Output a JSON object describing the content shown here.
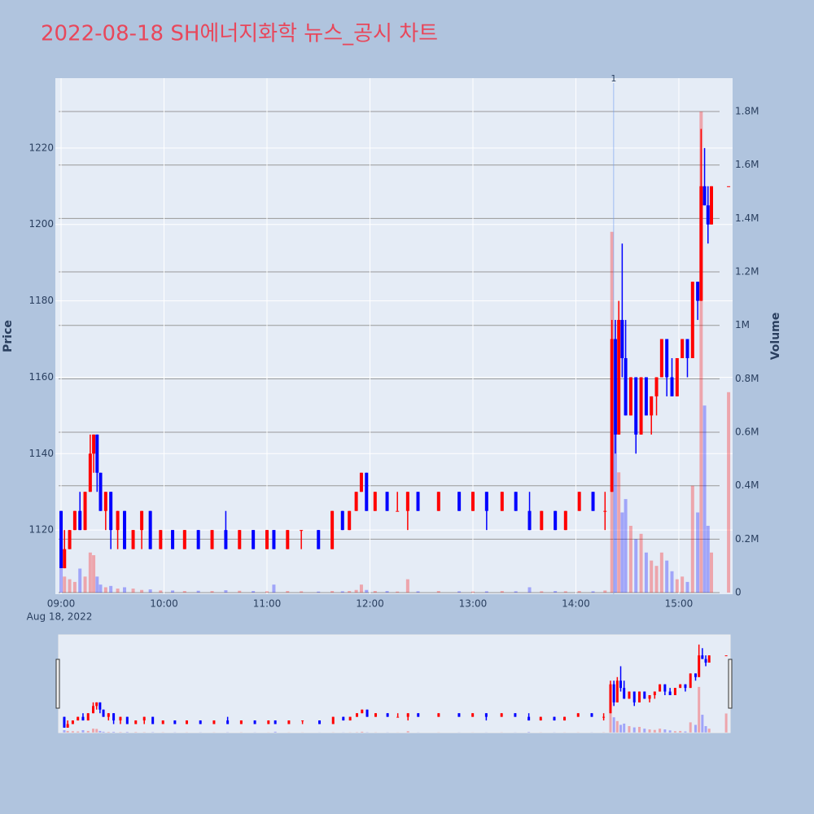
{
  "chart_data": {
    "type": "candlestick",
    "title": "2022-08-18 SH에너지화학 뉴스_공시 차트",
    "y_label": "Price",
    "y2_label": "Volume",
    "date_label": "Aug 18, 2022",
    "increasing_color": "#ff0000",
    "decreasing_color": "#0000ff",
    "grid": true,
    "range_slider": true,
    "xlim": [
      "2022-08-18 08:56:40",
      "2022-08-18 15:31:20"
    ],
    "xticks": [
      {
        "value": "2022-08-18 09:00",
        "label": "09:00"
      },
      {
        "value": "2022-08-18 10:00",
        "label": "10:00"
      },
      {
        "value": "2022-08-18 11:00",
        "label": "11:00"
      },
      {
        "value": "2022-08-18 12:00",
        "label": "12:00"
      },
      {
        "value": "2022-08-18 13:00",
        "label": "13:00"
      },
      {
        "value": "2022-08-18 14:00",
        "label": "14:00"
      },
      {
        "value": "2022-08-18 15:00",
        "label": "15:00"
      }
    ],
    "ylim": [
      1103.2,
      1238.3
    ],
    "yticks": [
      1120,
      1140,
      1160,
      1180,
      1200,
      1220
    ],
    "y2lim": [
      -6000,
      1925000
    ],
    "y2ticks": [
      0,
      {
        "value": 200000,
        "label": "0.2M"
      },
      {
        "value": 400000,
        "label": "0.4M"
      },
      {
        "value": 600000,
        "label": "0.6M"
      },
      {
        "value": 800000,
        "label": "0.8M"
      },
      {
        "value": 1000000,
        "label": "1M"
      },
      {
        "value": 1200000,
        "label": "1.2M"
      },
      {
        "value": 1400000,
        "label": "1.4M"
      },
      {
        "value": 1600000,
        "label": "1.6M"
      },
      {
        "value": 1800000,
        "label": "1.8M"
      }
    ],
    "annotations": [
      {
        "x": "2022-08-18 14:22",
        "text": "1"
      }
    ],
    "x": [
      "2022-08-18 09:00",
      "2022-08-18 09:02",
      "2022-08-18 09:05",
      "2022-08-18 09:08",
      "2022-08-18 09:11",
      "2022-08-18 09:14",
      "2022-08-18 09:17",
      "2022-08-18 09:19",
      "2022-08-18 09:21",
      "2022-08-18 09:23",
      "2022-08-18 09:26",
      "2022-08-18 09:29",
      "2022-08-18 09:33",
      "2022-08-18 09:37",
      "2022-08-18 09:42",
      "2022-08-18 09:47",
      "2022-08-18 09:52",
      "2022-08-18 09:58",
      "2022-08-18 10:05",
      "2022-08-18 10:12",
      "2022-08-18 10:20",
      "2022-08-18 10:28",
      "2022-08-18 10:36",
      "2022-08-18 10:44",
      "2022-08-18 10:52",
      "2022-08-18 11:00",
      "2022-08-18 11:04",
      "2022-08-18 11:12",
      "2022-08-18 11:20",
      "2022-08-18 11:30",
      "2022-08-18 11:38",
      "2022-08-18 11:44",
      "2022-08-18 11:48",
      "2022-08-18 11:52",
      "2022-08-18 11:55",
      "2022-08-18 11:58",
      "2022-08-18 12:03",
      "2022-08-18 12:10",
      "2022-08-18 12:16",
      "2022-08-18 12:22",
      "2022-08-18 12:28",
      "2022-08-18 12:40",
      "2022-08-18 12:52",
      "2022-08-18 13:00",
      "2022-08-18 13:08",
      "2022-08-18 13:17",
      "2022-08-18 13:25",
      "2022-08-18 13:33",
      "2022-08-18 13:40",
      "2022-08-18 13:48",
      "2022-08-18 13:54",
      "2022-08-18 14:02",
      "2022-08-18 14:10",
      "2022-08-18 14:17",
      "2022-08-18 14:21",
      "2022-08-18 14:23",
      "2022-08-18 14:25",
      "2022-08-18 14:27",
      "2022-08-18 14:29",
      "2022-08-18 14:32",
      "2022-08-18 14:35",
      "2022-08-18 14:38",
      "2022-08-18 14:41",
      "2022-08-18 14:44",
      "2022-08-18 14:47",
      "2022-08-18 14:50",
      "2022-08-18 14:53",
      "2022-08-18 14:56",
      "2022-08-18 14:59",
      "2022-08-18 15:02",
      "2022-08-18 15:05",
      "2022-08-18 15:08",
      "2022-08-18 15:11",
      "2022-08-18 15:13",
      "2022-08-18 15:15",
      "2022-08-18 15:17",
      "2022-08-18 15:19",
      "2022-08-18 15:29"
    ],
    "open": [
      1125,
      1110,
      1115,
      1120,
      1125,
      1120,
      1130,
      1140,
      1145,
      1135,
      1125,
      1130,
      1120,
      1125,
      1115,
      1120,
      1125,
      1115,
      1120,
      1115,
      1120,
      1115,
      1120,
      1115,
      1120,
      1115,
      1120,
      1115,
      1120,
      1120,
      1115,
      1125,
      1120,
      1125,
      1130,
      1135,
      1125,
      1130,
      1125,
      1125,
      1130,
      1125,
      1130,
      1125,
      1130,
      1125,
      1130,
      1125,
      1120,
      1125,
      1120,
      1125,
      1130,
      1125,
      1130,
      1170,
      1145,
      1175,
      1165,
      1150,
      1160,
      1145,
      1160,
      1150,
      1155,
      1160,
      1170,
      1160,
      1155,
      1165,
      1170,
      1165,
      1185,
      1180,
      1210,
      1205,
      1200,
      1210
    ],
    "high": [
      1125,
      1120,
      1120,
      1125,
      1130,
      1130,
      1145,
      1145,
      1145,
      1135,
      1130,
      1130,
      1125,
      1125,
      1120,
      1125,
      1125,
      1120,
      1120,
      1120,
      1120,
      1120,
      1125,
      1120,
      1120,
      1120,
      1120,
      1120,
      1120,
      1120,
      1125,
      1125,
      1125,
      1130,
      1135,
      1135,
      1130,
      1130,
      1130,
      1130,
      1130,
      1130,
      1130,
      1130,
      1130,
      1130,
      1130,
      1130,
      1125,
      1125,
      1125,
      1130,
      1130,
      1130,
      1175,
      1175,
      1180,
      1195,
      1175,
      1160,
      1160,
      1160,
      1160,
      1155,
      1160,
      1170,
      1170,
      1165,
      1165,
      1170,
      1170,
      1185,
      1185,
      1225,
      1220,
      1210,
      1210,
      1210
    ],
    "low": [
      1110,
      1110,
      1115,
      1120,
      1120,
      1120,
      1130,
      1135,
      1130,
      1125,
      1120,
      1115,
      1115,
      1115,
      1115,
      1115,
      1115,
      1115,
      1115,
      1115,
      1115,
      1115,
      1115,
      1115,
      1115,
      1115,
      1115,
      1115,
      1115,
      1115,
      1115,
      1120,
      1120,
      1125,
      1130,
      1125,
      1125,
      1125,
      1125,
      1120,
      1125,
      1125,
      1125,
      1125,
      1120,
      1125,
      1125,
      1120,
      1120,
      1120,
      1120,
      1125,
      1125,
      1120,
      1130,
      1140,
      1145,
      1160,
      1150,
      1150,
      1140,
      1145,
      1150,
      1145,
      1150,
      1160,
      1155,
      1155,
      1155,
      1165,
      1160,
      1165,
      1175,
      1180,
      1205,
      1195,
      1200,
      1210
    ],
    "close": [
      1110,
      1115,
      1120,
      1125,
      1120,
      1130,
      1140,
      1145,
      1135,
      1125,
      1130,
      1120,
      1125,
      1115,
      1120,
      1125,
      1115,
      1120,
      1115,
      1120,
      1115,
      1120,
      1115,
      1120,
      1115,
      1120,
      1115,
      1120,
      1120,
      1115,
      1125,
      1120,
      1125,
      1130,
      1135,
      1125,
      1130,
      1125,
      1125,
      1130,
      1125,
      1130,
      1125,
      1130,
      1125,
      1130,
      1125,
      1120,
      1125,
      1120,
      1125,
      1130,
      1125,
      1125,
      1170,
      1145,
      1175,
      1165,
      1150,
      1160,
      1145,
      1160,
      1150,
      1155,
      1160,
      1170,
      1160,
      1155,
      1165,
      1170,
      1165,
      1185,
      1180,
      1210,
      1205,
      1200,
      1210,
      1210
    ],
    "volume": [
      90000,
      60000,
      50000,
      40000,
      90000,
      60000,
      150000,
      140000,
      60000,
      30000,
      20000,
      25000,
      15000,
      20000,
      15000,
      10000,
      12000,
      8000,
      8000,
      6000,
      7000,
      6000,
      9000,
      7000,
      6000,
      5000,
      30000,
      6000,
      5000,
      4000,
      6000,
      5000,
      6000,
      10000,
      30000,
      10000,
      6000,
      6000,
      4000,
      50000,
      5000,
      6000,
      5000,
      4000,
      5000,
      6000,
      5000,
      20000,
      5000,
      6000,
      5000,
      6000,
      5000,
      8000,
      1350000,
      600000,
      450000,
      300000,
      350000,
      250000,
      200000,
      220000,
      150000,
      120000,
      100000,
      150000,
      120000,
      80000,
      50000,
      60000,
      40000,
      400000,
      300000,
      1800000,
      700000,
      250000,
      150000,
      750000
    ]
  }
}
